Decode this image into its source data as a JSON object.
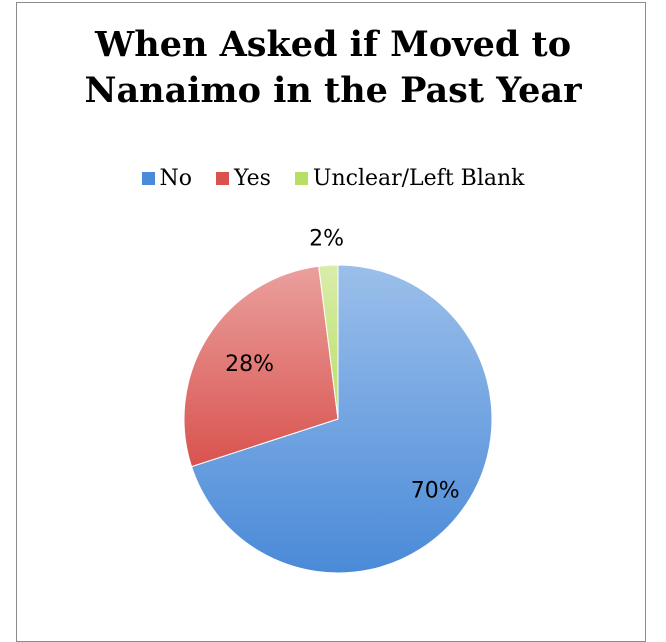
{
  "chart_data": {
    "type": "pie",
    "title": "When Asked if Moved to Nanaimo in the Past Year",
    "title_lines": [
      "When Asked if Moved to",
      "Nanaimo in the Past Year"
    ],
    "categories": [
      "No",
      "Yes",
      "Unclear/Left Blank"
    ],
    "values": [
      70,
      28,
      2
    ],
    "data_labels": [
      "70%",
      "28%",
      "2%"
    ],
    "colors": [
      "#4a8ad8",
      "#d9534e",
      "#b9de66"
    ],
    "legend_position": "top",
    "start_angle": "12 o'clock",
    "direction": "clockwise"
  }
}
